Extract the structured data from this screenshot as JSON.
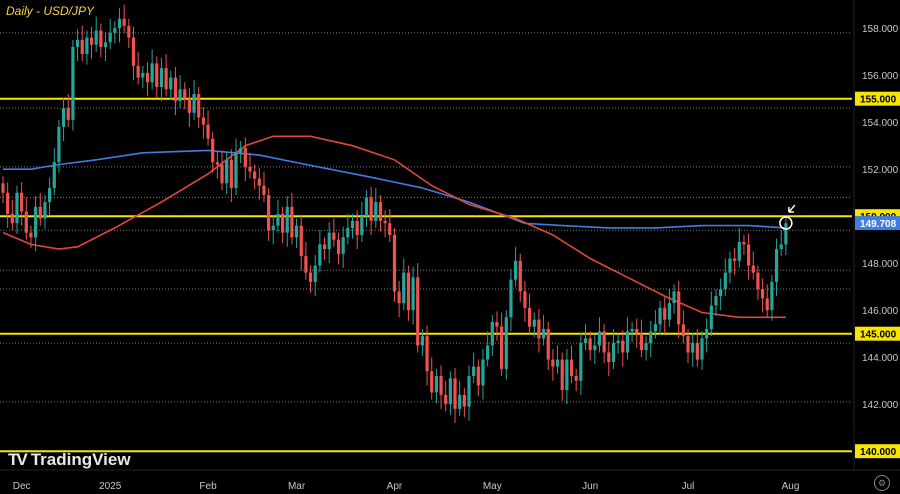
{
  "chart_data": {
    "type": "candlestick",
    "title": "Daily - USD/JPY",
    "ylim": [
      139.2,
      159.2
    ],
    "y_ticks": [
      158,
      156,
      154,
      152,
      148,
      146,
      144,
      142
    ],
    "y_tick_labels": [
      "158.000",
      "156.000",
      "154.000",
      "152.000",
      "148.000",
      "146.000",
      "144.000",
      "142.000"
    ],
    "x_labels": [
      {
        "label": "Dec",
        "index": 4
      },
      {
        "label": "2025",
        "index": 23
      },
      {
        "label": "Feb",
        "index": 44
      },
      {
        "label": "Mar",
        "index": 63
      },
      {
        "label": "Apr",
        "index": 84
      },
      {
        "label": "May",
        "index": 105
      },
      {
        "label": "Jun",
        "index": 126
      },
      {
        "label": "Jul",
        "index": 147
      },
      {
        "label": "Aug",
        "index": 169
      }
    ],
    "highlight_levels": [
      {
        "value": 155,
        "label": "155.000"
      },
      {
        "value": 150,
        "label": "150.000"
      },
      {
        "value": 145,
        "label": "145.000"
      },
      {
        "value": 140,
        "label": "140.000"
      }
    ],
    "current_price": {
      "value": 149.708,
      "label": "149.708"
    },
    "dashed_levels": [
      157.8,
      154.6,
      152.1,
      150.8,
      149.4,
      147.7,
      146.9,
      144.6,
      142.1
    ],
    "closes": [
      151.0,
      150.1,
      149.7,
      151.0,
      150.2,
      149.3,
      149.1,
      150.4,
      149.9,
      150.6,
      151.2,
      152.3,
      153.8,
      154.6,
      154.1,
      157.2,
      157.5,
      156.9,
      157.6,
      157.3,
      157.9,
      157.2,
      157.4,
      157.8,
      158.0,
      158.4,
      158.1,
      157.6,
      156.4,
      155.9,
      156.1,
      155.7,
      156.5,
      155.5,
      156.3,
      155.4,
      155.9,
      154.9,
      155.4,
      155.0,
      154.4,
      155.2,
      154.2,
      153.9,
      153.3,
      152.3,
      152.2,
      151.4,
      152.4,
      151.2,
      152.7,
      152.9,
      152.1,
      151.9,
      151.6,
      151.3,
      150.9,
      149.4,
      149.6,
      150.1,
      149.3,
      150.4,
      149.1,
      149.6,
      148.3,
      147.6,
      147.2,
      147.9,
      148.8,
      148.6,
      149.3,
      149.0,
      148.4,
      149.1,
      149.5,
      149.8,
      149.2,
      150.0,
      150.8,
      149.8,
      150.6,
      149.8,
      149.7,
      149.2,
      146.8,
      146.3,
      147.6,
      146.0,
      147.4,
      144.5,
      144.9,
      143.4,
      142.5,
      143.2,
      142.4,
      142.0,
      143.1,
      141.8,
      142.4,
      141.9,
      143.2,
      143.6,
      142.8,
      143.9,
      144.5,
      145.5,
      145.3,
      143.5,
      145.7,
      147.3,
      148.1,
      146.8,
      146.1,
      145.3,
      145.6,
      144.8,
      145.2,
      143.9,
      143.6,
      143.9,
      142.6,
      143.9,
      143.2,
      143.0,
      144.6,
      144.8,
      144.3,
      144.5,
      145.1,
      144.2,
      143.8,
      144.6,
      144.7,
      144.2,
      145.1,
      145.2,
      145.0,
      144.3,
      144.6,
      145.1,
      145.4,
      146.1,
      145.6,
      146.3,
      146.8,
      145.4,
      144.9,
      144.2,
      144.6,
      143.9,
      144.8,
      145.2,
      146.2,
      146.6,
      146.9,
      147.6,
      148.2,
      148.1,
      148.9,
      148.8,
      147.9,
      147.6,
      146.9,
      146.5,
      146.0,
      147.2,
      148.6,
      148.8,
      149.7
    ],
    "series": [
      {
        "name": "",
        "type": "moving-average",
        "color": "#3f7ee0",
        "points": [
          [
            0,
            152.0
          ],
          [
            6,
            152.0
          ],
          [
            12,
            152.2
          ],
          [
            20,
            152.4
          ],
          [
            30,
            152.7
          ],
          [
            44,
            152.8
          ],
          [
            55,
            152.6
          ],
          [
            65,
            152.2
          ],
          [
            78,
            151.7
          ],
          [
            90,
            151.2
          ],
          [
            100,
            150.6
          ],
          [
            108,
            150.0
          ],
          [
            112,
            149.7
          ],
          [
            120,
            149.6
          ],
          [
            130,
            149.5
          ],
          [
            140,
            149.5
          ],
          [
            150,
            149.6
          ],
          [
            160,
            149.6
          ],
          [
            168,
            149.5
          ]
        ]
      },
      {
        "name": "",
        "type": "moving-average",
        "color": "#e0463c",
        "points": [
          [
            0,
            149.3
          ],
          [
            6,
            148.8
          ],
          [
            12,
            148.6
          ],
          [
            16,
            148.7
          ],
          [
            24,
            149.5
          ],
          [
            34,
            150.6
          ],
          [
            44,
            151.8
          ],
          [
            52,
            153.0
          ],
          [
            58,
            153.4
          ],
          [
            66,
            153.4
          ],
          [
            75,
            153.0
          ],
          [
            84,
            152.4
          ],
          [
            92,
            151.3
          ],
          [
            100,
            150.5
          ],
          [
            110,
            149.9
          ],
          [
            118,
            149.2
          ],
          [
            126,
            148.2
          ],
          [
            134,
            147.4
          ],
          [
            142,
            146.6
          ],
          [
            150,
            145.9
          ],
          [
            158,
            145.7
          ],
          [
            168,
            145.7
          ]
        ]
      }
    ],
    "colors": {
      "up": "#26a69a",
      "down": "#ef5350",
      "level_line": "#f5e500",
      "level_tag": "#f5e500",
      "price_tag": "#3f7ee0",
      "grid": "#2a2a2a"
    }
  },
  "branding": {
    "name": "TradingView",
    "logo_text": "TV",
    "title": "Daily - USD/JPY"
  }
}
